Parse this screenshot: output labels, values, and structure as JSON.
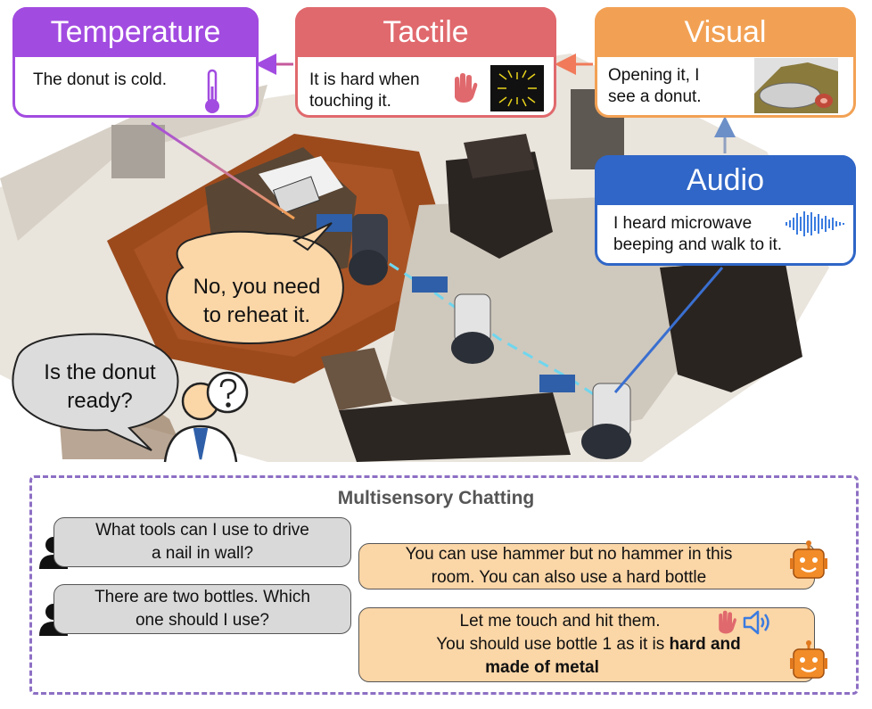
{
  "cards": {
    "temperature": {
      "title": "Temperature",
      "text": "The donut is cold."
    },
    "tactile": {
      "title": "Tactile",
      "text_line1": "It is hard when",
      "text_line2": "touching it."
    },
    "visual": {
      "title": "Visual",
      "text_line1": "Opening it, I",
      "text_line2": "see a donut."
    },
    "audio": {
      "title": "Audio",
      "text_line1": "I heard microwave",
      "text_line2": "beeping and walk to it."
    }
  },
  "bubbles": {
    "robot_reply_line1": "No, you need",
    "robot_reply_line2": "to reheat it.",
    "human_question_line1": "Is the donut",
    "human_question_line2": "ready?"
  },
  "chat": {
    "title": "Multisensory Chatting",
    "messages": [
      {
        "role": "user",
        "line1": "What tools can I use to drive",
        "line2": "a nail in wall?"
      },
      {
        "role": "robot",
        "line1": "You can use hammer but no hammer in this",
        "line2": "room. You can also use a hard bottle"
      },
      {
        "role": "user",
        "line1": "There are two bottles. Which",
        "line2": "one should I use?"
      },
      {
        "role": "robot",
        "line1": "Let me touch and hit them.",
        "line2": "You should use bottle 1 as it is",
        "line2_bold": "hard and",
        "line3_bold": "made of metal"
      }
    ]
  },
  "colors": {
    "temperature": "#a24be0",
    "tactile": "#e0696d",
    "visual": "#f2a154",
    "audio": "#2f66c7",
    "user_bubble": "#d9d9d9",
    "robot_bubble": "#fbd6a7",
    "trajectory": "#6fd6ee"
  },
  "icons": [
    "thermometer-icon",
    "hand-icon",
    "tactile-image-icon",
    "donut-photo-icon",
    "sound-wave-icon",
    "person-icon",
    "robot-face-icon",
    "speaker-icon"
  ]
}
